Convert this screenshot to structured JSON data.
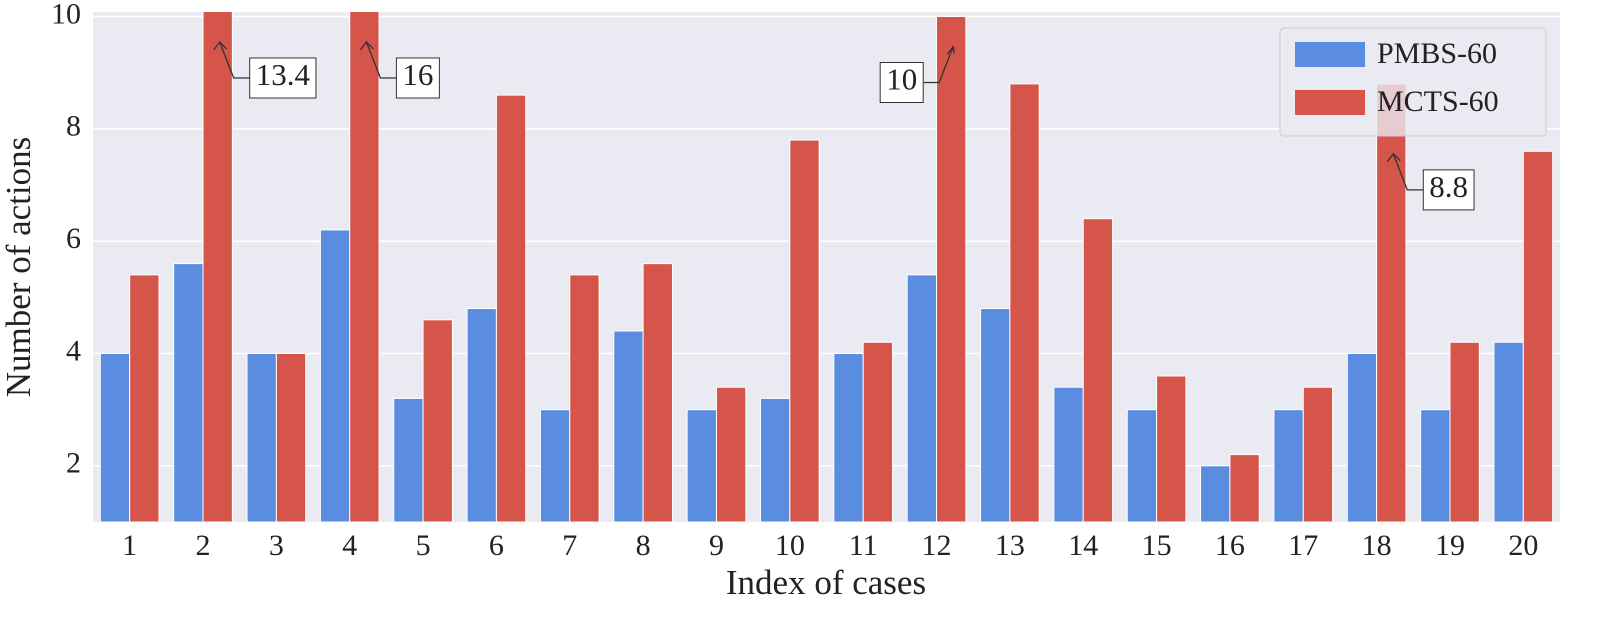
{
  "chart_data": {
    "type": "bar",
    "x_label": "Index of cases",
    "y_label": "Number of actions",
    "categories": [
      "1",
      "2",
      "3",
      "4",
      "5",
      "6",
      "7",
      "8",
      "9",
      "10",
      "11",
      "12",
      "13",
      "14",
      "15",
      "16",
      "17",
      "18",
      "19",
      "20"
    ],
    "series": [
      {
        "name": "PMBS-60",
        "color": "#5a8de0",
        "values": [
          4,
          5.6,
          4,
          6.2,
          3.2,
          4.8,
          3,
          4.4,
          3,
          3.2,
          4,
          5.4,
          4.8,
          3.4,
          3,
          2,
          3,
          4,
          3,
          4.2
        ]
      },
      {
        "name": "MCTS-60",
        "color": "#d5554b",
        "values": [
          5.4,
          13.4,
          4,
          16,
          4.6,
          8.6,
          5.4,
          5.6,
          3.4,
          7.8,
          4.2,
          10,
          8.8,
          6.4,
          3.6,
          2.2,
          3.4,
          8.8,
          4.2,
          7.6
        ],
        "value_labels": [
          null,
          "13.4",
          null,
          "16",
          null,
          null,
          null,
          null,
          null,
          null,
          null,
          "10",
          null,
          null,
          null,
          null,
          null,
          "8.8",
          null,
          null
        ]
      }
    ],
    "ylim": [
      1,
      10.08
    ],
    "yticks": [
      2,
      4,
      6,
      8,
      10
    ],
    "grid": true,
    "legend": "upper right"
  }
}
